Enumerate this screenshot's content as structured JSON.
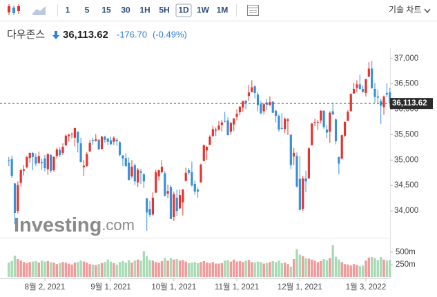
{
  "toolbar": {
    "intervals": [
      "1",
      "5",
      "15",
      "30",
      "1H",
      "5H",
      "1D",
      "1W",
      "1M"
    ],
    "selected": 6,
    "menu": "기술 차트"
  },
  "header": {
    "name": "다우존스",
    "price": "36,113.62",
    "change": "-176.70",
    "change_pct": "(-0.49%)"
  },
  "watermark": {
    "brand": "Investing",
    "suffix": ".com"
  },
  "chart_data": {
    "type": "candlestick",
    "open": [
      35000,
      35020,
      34540,
      34000,
      34550,
      34790,
      34860,
      35040,
      35140,
      35060,
      34940,
      34960,
      35030,
      34820,
      35100,
      34800,
      35080,
      35200,
      35140,
      35290,
      35470,
      35510,
      35440,
      35560,
      35330,
      34860,
      34880,
      35170,
      35390,
      35380,
      35400,
      35220,
      35460,
      35420,
      35390,
      35360,
      35400,
      35350,
      35090,
      35040,
      34950,
      34680,
      34900,
      34560,
      34780,
      34720,
      34250,
      34040,
      33930,
      34360,
      34680,
      34760,
      34740,
      34340,
      34470,
      33880,
      34260,
      34050,
      34170,
      34590,
      34800,
      34760,
      34530,
      34420,
      34560,
      34980,
      35190,
      35300,
      35470,
      35580,
      35600,
      35690,
      35770,
      35780,
      35560,
      35700,
      35850,
      35940,
      36030,
      36170,
      36260,
      36340,
      36450,
      36290,
      36100,
      35960,
      36130,
      36080,
      36150,
      35970,
      35870,
      35630,
      35610,
      35770,
      35500,
      35070,
      35080,
      34630,
      34040,
      34640,
      34640,
      35290,
      35740,
      35750,
      35780,
      35970,
      35600,
      35560,
      35960,
      35800,
      35060,
      35030,
      35480,
      35770,
      35960,
      36310,
      36420,
      36490,
      36400,
      36320,
      36640,
      36800,
      36400,
      36250,
      36160,
      36040,
      36320,
      36330
    ],
    "high": [
      35060,
      35090,
      34550,
      34580,
      34830,
      34900,
      35080,
      35150,
      35160,
      35130,
      35170,
      35020,
      35100,
      35130,
      35120,
      35080,
      35240,
      35250,
      35330,
      35510,
      35520,
      35540,
      35630,
      35560,
      35440,
      35000,
      35160,
      35400,
      35440,
      35510,
      35410,
      35480,
      35480,
      35440,
      35460,
      35470,
      35430,
      35370,
      35100,
      35130,
      35050,
      35000,
      34930,
      34840,
      34830,
      34740,
      34250,
      34200,
      34370,
      34810,
      34810,
      35000,
      34780,
      34520,
      34510,
      34380,
      34420,
      34420,
      34430,
      34850,
      34840,
      34970,
      34600,
      34460,
      34930,
      35310,
      35280,
      35490,
      35670,
      35640,
      35770,
      35790,
      35950,
      35840,
      35750,
      35820,
      36000,
      36060,
      36170,
      36180,
      36480,
      36570,
      36470,
      36340,
      36160,
      36130,
      36200,
      36250,
      36160,
      35990,
      35900,
      35920,
      35840,
      35830,
      35500,
      35240,
      35150,
      35080,
      34690,
      34790,
      35250,
      35730,
      35810,
      35790,
      35980,
      35980,
      35690,
      35960,
      36130,
      35820,
      35070,
      35500,
      35760,
      35980,
      36310,
      36520,
      36570,
      36680,
      36470,
      36600,
      36930,
      36950,
      36520,
      36380,
      36200,
      36270,
      36510,
      36420
    ],
    "low": [
      34880,
      34650,
      33740,
      33950,
      34480,
      34700,
      34840,
      34950,
      34800,
      34880,
      34930,
      34800,
      34780,
      34710,
      34750,
      34770,
      35030,
      35060,
      35100,
      35280,
      35360,
      35430,
      35270,
      35150,
      34960,
      34690,
      34870,
      35160,
      35300,
      35360,
      35200,
      35210,
      35340,
      35290,
      35300,
      35300,
      35280,
      35070,
      34880,
      34870,
      34600,
      34640,
      34510,
      34470,
      34530,
      34450,
      33610,
      33880,
      33900,
      34350,
      34600,
      34740,
      34280,
      34250,
      33840,
      33800,
      33900,
      34030,
      33910,
      34580,
      34710,
      34480,
      34320,
      34260,
      34560,
      34980,
      35000,
      35300,
      35460,
      35470,
      35580,
      35560,
      35740,
      35490,
      35500,
      35570,
      35780,
      35880,
      35950,
      36000,
      36160,
      36330,
      36210,
      35960,
      35900,
      35900,
      35990,
      36070,
      35930,
      35740,
      35560,
      35600,
      35530,
      35490,
      34820,
      34900,
      34460,
      34010,
      34000,
      34370,
      34630,
      35290,
      35670,
      35590,
      35720,
      35610,
      35430,
      35340,
      35880,
      35310,
      34720,
      35010,
      35450,
      35770,
      35960,
      36310,
      36330,
      36390,
      36330,
      36250,
      36630,
      36410,
      36130,
      36120,
      35710,
      35890,
      36240,
      36030
    ],
    "close": [
      34990,
      34690,
      33960,
      34510,
      34800,
      34820,
      35060,
      35140,
      35060,
      34930,
      35080,
      34940,
      34840,
      35120,
      34790,
      35060,
      35210,
      35100,
      35260,
      35480,
      35500,
      35520,
      35630,
      35340,
      34960,
      34890,
      35120,
      35340,
      35370,
      35410,
      35210,
      35460,
      35400,
      35360,
      35310,
      35440,
      35370,
      35100,
      35030,
      34880,
      34610,
      34870,
      34580,
      34810,
      34750,
      34580,
      33970,
      33920,
      34260,
      34760,
      34800,
      34870,
      34300,
      34390,
      33840,
      34330,
      34000,
      34310,
      34420,
      34750,
      34750,
      34500,
      34380,
      34380,
      34910,
      35290,
      35260,
      35460,
      35610,
      35600,
      35680,
      35740,
      35760,
      35490,
      35730,
      35820,
      35910,
      36050,
      36160,
      36120,
      36330,
      36430,
      36320,
      36080,
      35920,
      36100,
      36090,
      36140,
      35930,
      35870,
      35600,
      35620,
      35810,
      35800,
      34900,
      35140,
      34480,
      34020,
      34640,
      34580,
      35230,
      35720,
      35750,
      35750,
      35970,
      35650,
      35540,
      35930,
      35900,
      35370,
      34930,
      35490,
      35750,
      35950,
      36300,
      36400,
      36490,
      36400,
      36340,
      36590,
      36800,
      36410,
      36240,
      36230,
      36070,
      36250,
      36290,
      36113.62
    ],
    "volume": [
      290,
      320,
      430,
      360,
      330,
      300,
      280,
      300,
      310,
      320,
      290,
      330,
      310,
      320,
      300,
      290,
      260,
      280,
      300,
      290,
      270,
      250,
      290,
      300,
      330,
      310,
      290,
      260,
      250,
      240,
      260,
      280,
      300,
      350,
      310,
      280,
      250,
      300,
      320,
      290,
      340,
      290,
      330,
      350,
      330,
      520,
      420,
      340,
      330,
      300,
      290,
      320,
      380,
      330,
      380,
      350,
      360,
      330,
      340,
      310,
      280,
      290,
      300,
      280,
      300,
      320,
      290,
      280,
      300,
      270,
      270,
      280,
      330,
      340,
      310,
      350,
      310,
      320,
      300,
      330,
      340,
      300,
      290,
      310,
      300,
      270,
      280,
      300,
      320,
      300,
      330,
      280,
      290,
      260,
      210,
      360,
      560,
      450,
      420,
      380,
      370,
      350,
      330,
      300,
      320,
      360,
      340,
      380,
      640,
      410,
      350,
      300,
      260,
      250,
      230,
      260,
      240,
      220,
      230,
      330,
      390,
      400,
      380,
      340,
      400,
      350,
      330,
      340
    ],
    "up_color": "#e3342f",
    "down_color": "#3a8fd9",
    "volume_up_color": "#f29a9a",
    "volume_down_color": "#a6dbb5",
    "ylim": [
      33540,
      37200
    ],
    "yticks": [
      {
        "value": 34000,
        "label": "34,000"
      },
      {
        "value": 34500,
        "label": "34,500"
      },
      {
        "value": 35000,
        "label": "35,000"
      },
      {
        "value": 35500,
        "label": "35,500"
      },
      {
        "value": 36000,
        "label": "36,000"
      },
      {
        "value": 36500,
        "label": "36,500"
      },
      {
        "value": 37000,
        "label": "37,000"
      }
    ],
    "vlim": [
      0,
      720
    ],
    "vticks": [
      {
        "value": 250,
        "label": "250m"
      },
      {
        "value": 500,
        "label": "500m"
      }
    ],
    "xticks": [
      {
        "value": 12,
        "label": "8월 2, 2021"
      },
      {
        "value": 34,
        "label": "9월 1, 2021"
      },
      {
        "value": 55,
        "label": "10월 1, 2021"
      },
      {
        "value": 76,
        "label": "11월 1, 2021"
      },
      {
        "value": 97,
        "label": "12월 1, 2021"
      },
      {
        "value": 119,
        "label": "1월 3, 2022"
      }
    ]
  }
}
